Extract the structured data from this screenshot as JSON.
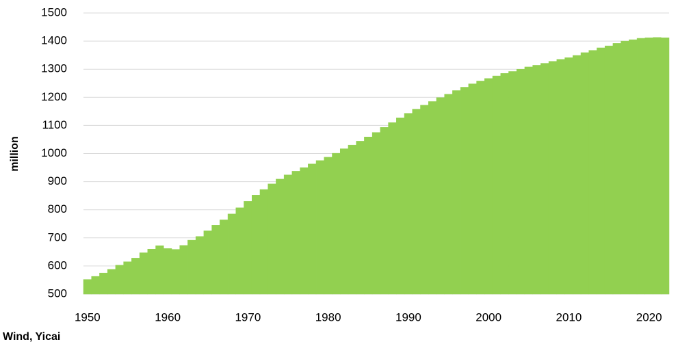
{
  "chart_data": {
    "type": "bar",
    "y_label": "million",
    "source": "Wind, Yicai",
    "color": "#92d050",
    "grid": true,
    "x": [
      1950,
      1951,
      1952,
      1953,
      1954,
      1955,
      1956,
      1957,
      1958,
      1959,
      1960,
      1961,
      1962,
      1963,
      1964,
      1965,
      1966,
      1967,
      1968,
      1969,
      1970,
      1971,
      1972,
      1973,
      1974,
      1975,
      1976,
      1977,
      1978,
      1979,
      1980,
      1981,
      1982,
      1983,
      1984,
      1985,
      1986,
      1987,
      1988,
      1989,
      1990,
      1991,
      1992,
      1993,
      1994,
      1995,
      1996,
      1997,
      1998,
      1999,
      2000,
      2001,
      2002,
      2003,
      2004,
      2005,
      2006,
      2007,
      2008,
      2009,
      2010,
      2011,
      2012,
      2013,
      2014,
      2015,
      2016,
      2017,
      2018,
      2019,
      2020,
      2021,
      2022
    ],
    "values": [
      552,
      563,
      575,
      588,
      603,
      615,
      628,
      647,
      660,
      672,
      662,
      659,
      673,
      692,
      705,
      725,
      745,
      764,
      785,
      807,
      830,
      852,
      872,
      892,
      909,
      924,
      937,
      950,
      963,
      975,
      987,
      1001,
      1017,
      1030,
      1044,
      1059,
      1075,
      1093,
      1110,
      1127,
      1143,
      1158,
      1172,
      1185,
      1199,
      1211,
      1224,
      1236,
      1248,
      1258,
      1267,
      1276,
      1285,
      1292,
      1300,
      1308,
      1314,
      1321,
      1328,
      1335,
      1341,
      1349,
      1359,
      1367,
      1376,
      1383,
      1392,
      1400,
      1405,
      1410,
      1412,
      1413,
      1412
    ],
    "xlim": [
      1949.5,
      2022.5
    ],
    "xticks": [
      1950,
      1960,
      1970,
      1980,
      1990,
      2000,
      2010,
      2020
    ],
    "ylim": [
      500,
      1500
    ],
    "yticks": [
      500,
      600,
      700,
      800,
      900,
      1000,
      1100,
      1200,
      1300,
      1400,
      1500
    ]
  }
}
